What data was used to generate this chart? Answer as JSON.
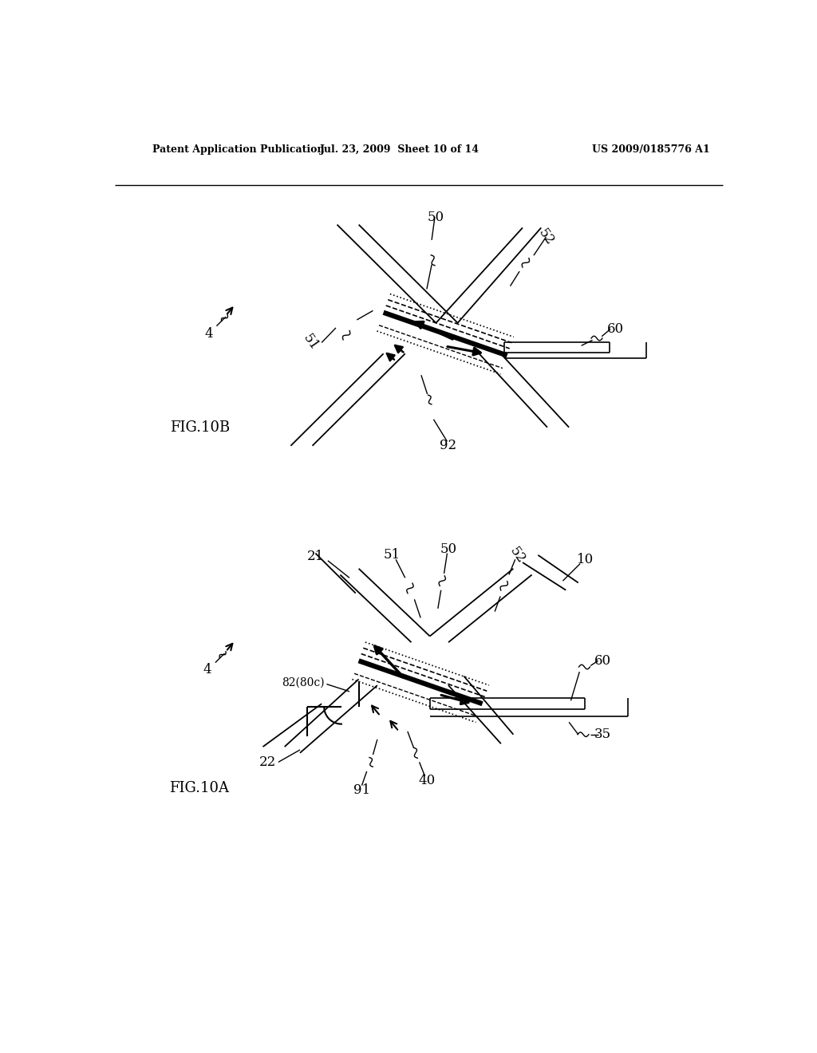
{
  "header_left": "Patent Application Publication",
  "header_mid": "Jul. 23, 2009  Sheet 10 of 14",
  "header_right": "US 2009/0185776 A1",
  "fig_top_label": "FIG.10B",
  "fig_bot_label": "FIG.10A",
  "bg_color": "#ffffff",
  "line_color": "#000000"
}
